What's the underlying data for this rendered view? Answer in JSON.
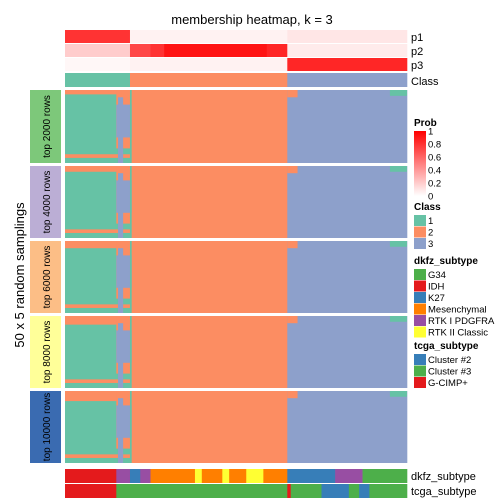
{
  "chart_data": {
    "type": "heatmap",
    "title": "membership heatmap, k = 3",
    "ylabel": "50 x 5 random samplings",
    "colors": {
      "class_1": "#66C2A5",
      "class_2": "#FC8D62",
      "class_3": "#8DA0CB",
      "prob_high": "#FF0000",
      "prob_low": "#FFFFFF",
      "separator": "#FFFFFF"
    },
    "prob_tracks": [
      {
        "label": "p1",
        "segments": [
          [
            0,
            0.19,
            0.8
          ],
          [
            0.19,
            0.65,
            0.05
          ],
          [
            0.65,
            1,
            0.1
          ]
        ]
      },
      {
        "label": "p2",
        "segments": [
          [
            0,
            0.19,
            0.2
          ],
          [
            0.19,
            0.25,
            0.72
          ],
          [
            0.25,
            0.29,
            0.8
          ],
          [
            0.29,
            0.59,
            0.92
          ],
          [
            0.59,
            0.65,
            0.85
          ],
          [
            0.65,
            1,
            0.08
          ]
        ]
      },
      {
        "label": "p3",
        "segments": [
          [
            0,
            0.19,
            0.03
          ],
          [
            0.19,
            0.65,
            0.05
          ],
          [
            0.65,
            1,
            0.85
          ]
        ]
      }
    ],
    "class_track": {
      "label": "Class",
      "segments": [
        [
          0,
          0.19,
          "1"
        ],
        [
          0.19,
          0.65,
          "2"
        ],
        [
          0.65,
          1,
          "3"
        ]
      ]
    },
    "sampling_blocks": [
      {
        "label": "top 2000 rows",
        "color": "#7DC87A"
      },
      {
        "label": "top 4000 rows",
        "color": "#BBAED5"
      },
      {
        "label": "top 6000 rows",
        "color": "#FCBE86"
      },
      {
        "label": "top 8000 rows",
        "color": "#FFFF99"
      },
      {
        "label": "top 10000 rows",
        "color": "#3A6BB1"
      }
    ],
    "bottom_tracks": [
      {
        "label": "dkfz_subtype",
        "segments": [
          [
            0,
            0.15,
            "#E41A1C"
          ],
          [
            0.15,
            0.19,
            "#984EA3"
          ],
          [
            0.19,
            0.22,
            "#377EB8"
          ],
          [
            0.22,
            0.25,
            "#984EA3"
          ],
          [
            0.25,
            0.38,
            "#FF7F00"
          ],
          [
            0.38,
            0.4,
            "#FFFF33"
          ],
          [
            0.4,
            0.46,
            "#FF7F00"
          ],
          [
            0.46,
            0.48,
            "#FFFF33"
          ],
          [
            0.48,
            0.53,
            "#FF7F00"
          ],
          [
            0.53,
            0.58,
            "#FFFF33"
          ],
          [
            0.58,
            0.65,
            "#FF7F00"
          ],
          [
            0.65,
            0.79,
            "#377EB8"
          ],
          [
            0.79,
            0.87,
            "#984EA3"
          ],
          [
            0.87,
            1,
            "#4DAF4A"
          ]
        ]
      },
      {
        "label": "tcga_subtype",
        "segments": [
          [
            0,
            0.15,
            "#E41A1C"
          ],
          [
            0.15,
            0.65,
            "#4DAF4A"
          ],
          [
            0.65,
            0.66,
            "#E41A1C"
          ],
          [
            0.66,
            0.75,
            "#4DAF4A"
          ],
          [
            0.75,
            0.83,
            "#377EB8"
          ],
          [
            0.83,
            0.86,
            "#4DAF4A"
          ],
          [
            0.86,
            0.89,
            "#377EB8"
          ],
          [
            0.89,
            1,
            "#4DAF4A"
          ]
        ]
      }
    ],
    "legends": {
      "prob": {
        "title": "Prob",
        "ticks": [
          "1",
          "0.8",
          "0.6",
          "0.4",
          "0.2",
          "0"
        ]
      },
      "class": {
        "title": "Class",
        "items": [
          {
            "label": "1",
            "color": "#66C2A5"
          },
          {
            "label": "2",
            "color": "#FC8D62"
          },
          {
            "label": "3",
            "color": "#8DA0CB"
          }
        ]
      },
      "dkfz": {
        "title": "dkfz_subtype",
        "items": [
          {
            "label": "G34",
            "color": "#4DAF4A"
          },
          {
            "label": "IDH",
            "color": "#E41A1C"
          },
          {
            "label": "K27",
            "color": "#377EB8"
          },
          {
            "label": "Mesenchymal",
            "color": "#FF7F00"
          },
          {
            "label": "RTK I PDGFRA",
            "color": "#984EA3"
          },
          {
            "label": "RTK II Classic",
            "color": "#FFFF33"
          }
        ]
      },
      "tcga": {
        "title": "tcga_subtype",
        "items": [
          {
            "label": "Cluster #2",
            "color": "#377EB8"
          },
          {
            "label": "Cluster #3",
            "color": "#4DAF4A"
          },
          {
            "label": "G-CIMP+",
            "color": "#E41A1C"
          }
        ]
      }
    }
  }
}
